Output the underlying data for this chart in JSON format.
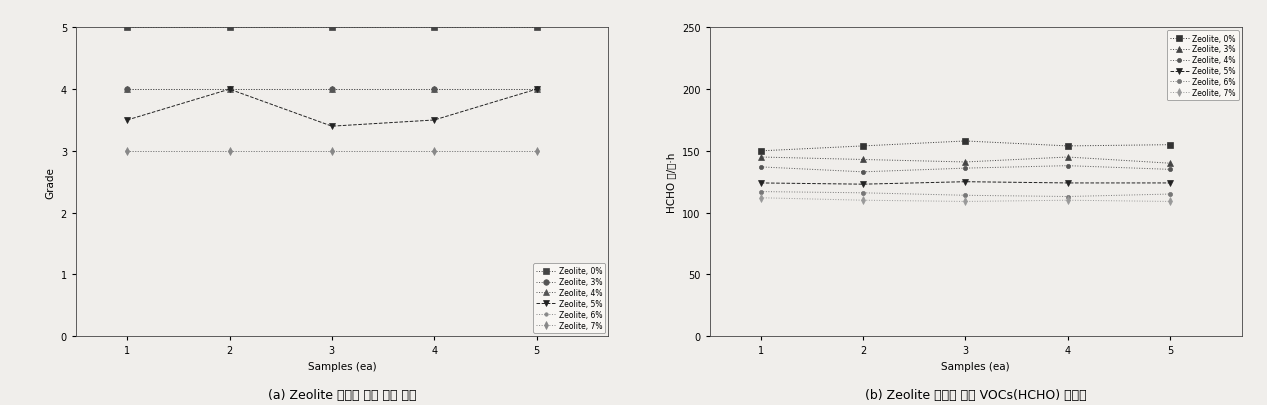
{
  "left_chart": {
    "xlabel": "Samples (ea)",
    "ylabel": "Grade",
    "xlim": [
      0.5,
      5.7
    ],
    "ylim": [
      0,
      5
    ],
    "yticks": [
      0,
      1,
      2,
      3,
      4,
      5
    ],
    "xticks": [
      1,
      2,
      3,
      4,
      5
    ],
    "series": [
      {
        "label": "Zeolite, 0%",
        "x": [
          1,
          2,
          3,
          4,
          5
        ],
        "y": [
          5.0,
          5.0,
          5.0,
          5.0,
          5.0
        ],
        "marker": "s",
        "linestyle": "dotted",
        "color": "#444444",
        "markersize": 4
      },
      {
        "label": "Zeolite, 3%",
        "x": [
          1,
          2,
          3,
          4,
          5
        ],
        "y": [
          4.0,
          4.0,
          4.0,
          4.0,
          4.0
        ],
        "marker": "o",
        "linestyle": "dotted",
        "color": "#555555",
        "markersize": 4
      },
      {
        "label": "Zeolite, 4%",
        "x": [
          1,
          2,
          3,
          4,
          5
        ],
        "y": [
          4.0,
          4.0,
          4.0,
          4.0,
          4.0
        ],
        "marker": "^",
        "linestyle": "dotted",
        "color": "#555555",
        "markersize": 4
      },
      {
        "label": "Zeolite, 5%",
        "x": [
          1,
          2,
          3,
          4,
          5
        ],
        "y": [
          3.5,
          4.0,
          3.4,
          3.5,
          4.0
        ],
        "marker": "v",
        "linestyle": "dashed",
        "color": "#222222",
        "markersize": 5
      },
      {
        "label": "Zeolite, 6%",
        "x": [
          1,
          2,
          3,
          4,
          5
        ],
        "y": [
          3.0,
          3.0,
          3.0,
          3.0,
          3.0
        ],
        "marker": ".",
        "linestyle": "dotted",
        "color": "#888888",
        "markersize": 5
      },
      {
        "label": "Zeolite, 7%",
        "x": [
          1,
          2,
          3,
          4,
          5
        ],
        "y": [
          3.0,
          3.0,
          3.0,
          3.0,
          3.0
        ],
        "marker": "d",
        "linestyle": "dotted",
        "color": "#888888",
        "markersize": 4
      }
    ],
    "legend_loc": "lower right"
  },
  "right_chart": {
    "xlabel": "Samples (ea)",
    "ylabel": "HCHO ㎍/㎡·h",
    "xlim": [
      0.5,
      5.7
    ],
    "ylim": [
      0,
      250
    ],
    "yticks": [
      0,
      50,
      100,
      150,
      200,
      250
    ],
    "xticks": [
      1,
      2,
      3,
      4,
      5
    ],
    "series": [
      {
        "label": "Zeolite, 0%",
        "x": [
          1,
          2,
          3,
          4,
          5
        ],
        "y": [
          150,
          154,
          158,
          154,
          155
        ],
        "marker": "s",
        "linestyle": "dotted",
        "color": "#333333",
        "markersize": 5
      },
      {
        "label": "Zeolite, 3%",
        "x": [
          1,
          2,
          3,
          4,
          5
        ],
        "y": [
          145,
          143,
          141,
          145,
          140
        ],
        "marker": "^",
        "linestyle": "dotted",
        "color": "#444444",
        "markersize": 4
      },
      {
        "label": "Zeolite, 4%",
        "x": [
          1,
          2,
          3,
          4,
          5
        ],
        "y": [
          137,
          133,
          136,
          138,
          135
        ],
        "marker": ".",
        "linestyle": "dotted",
        "color": "#555555",
        "markersize": 6
      },
      {
        "label": "Zeolite, 5%",
        "x": [
          1,
          2,
          3,
          4,
          5
        ],
        "y": [
          124,
          123,
          125,
          124,
          124
        ],
        "marker": "v",
        "linestyle": "dashed",
        "color": "#222222",
        "markersize": 5
      },
      {
        "label": "Zeolite, 6%",
        "x": [
          1,
          2,
          3,
          4,
          5
        ],
        "y": [
          117,
          116,
          114,
          113,
          115
        ],
        "marker": ".",
        "linestyle": "dotted",
        "color": "#777777",
        "markersize": 6
      },
      {
        "label": "Zeolite, 7%",
        "x": [
          1,
          2,
          3,
          4,
          5
        ],
        "y": [
          112,
          110,
          109,
          110,
          109
        ],
        "marker": "d",
        "linestyle": "dotted",
        "color": "#999999",
        "markersize": 4
      }
    ],
    "legend_loc": "upper right"
  },
  "caption_left": "(a) Zeolite 함량에 따른 냄새 특성",
  "caption_right": "(b) Zeolite 함량에 따른 VOCs(HCHO) 방출량",
  "bg_color": "#f0eeeb",
  "figure_width": 12.67,
  "figure_height": 4.06,
  "dpi": 100
}
